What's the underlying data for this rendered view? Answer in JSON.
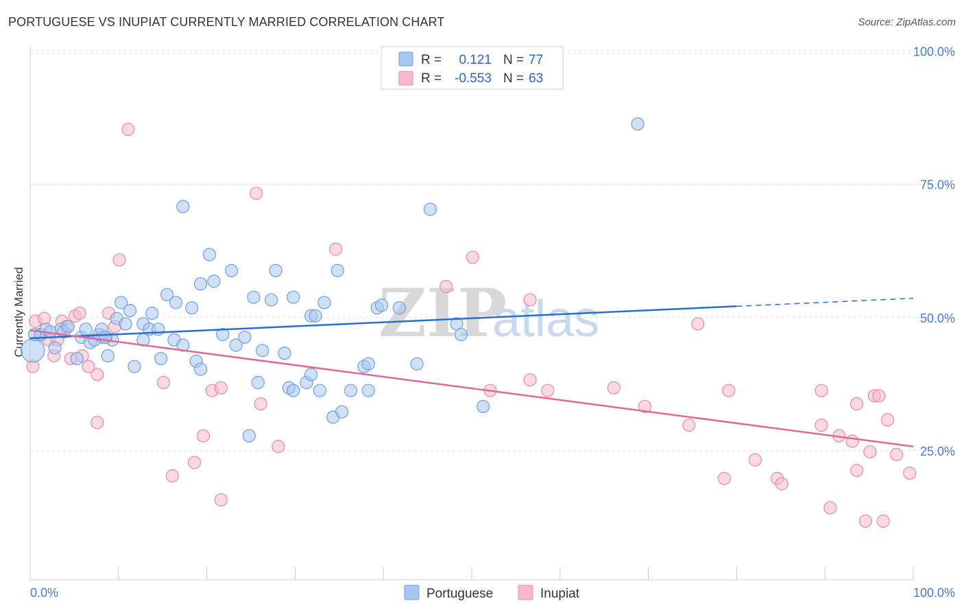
{
  "title": "PORTUGUESE VS INUPIAT CURRENTLY MARRIED CORRELATION CHART",
  "source": "Source: ZipAtlas.com",
  "watermark": {
    "zip": "ZIP",
    "atlas": "atlas"
  },
  "colors": {
    "blue_fill": "#a9c6f0",
    "blue_stroke": "#6f9fdc",
    "blue_line": "#2a6dd0",
    "pink_fill": "#f6b9cb",
    "pink_stroke": "#e98aa6",
    "pink_line": "#e06893",
    "tick": "#4a7cc9",
    "grid": "#dddddd"
  },
  "legend": {
    "rows": [
      {
        "r_label": "R =",
        "r_value": "0.121",
        "n_label": "N =",
        "n_value": "77"
      },
      {
        "r_label": "R =",
        "r_value": "-0.553",
        "n_label": "N =",
        "n_value": "63"
      }
    ]
  },
  "chart_data": {
    "type": "scatter",
    "title": "PORTUGUESE VS INUPIAT CURRENTLY MARRIED CORRELATION CHART",
    "xlabel": "",
    "ylabel": "Currently Married",
    "xlim": [
      0,
      100
    ],
    "ylim": [
      3,
      103
    ],
    "x_tick_labels": [
      "0.0%",
      "100.0%"
    ],
    "y_ticks": [
      25,
      50,
      75,
      100
    ],
    "y_tick_labels": [
      "25.0%",
      "50.0%",
      "75.0%",
      "100.0%"
    ],
    "series": [
      {
        "name": "Portuguese",
        "r": 0.121,
        "n": 77,
        "trend": {
          "x0": 0,
          "y0": 48.3,
          "x1": 80,
          "y1": 54.3,
          "dashed_to_x": 100,
          "dashed_to_y": 55.8
        },
        "points": [
          [
            0.3,
            46
          ],
          [
            1.2,
            49
          ],
          [
            1.8,
            50
          ],
          [
            2.3,
            49.5
          ],
          [
            2.8,
            46.5
          ],
          [
            3.5,
            50
          ],
          [
            3.8,
            49.5
          ],
          [
            4.3,
            50.5
          ],
          [
            5.3,
            44.5
          ],
          [
            5.8,
            48.5
          ],
          [
            6.3,
            50
          ],
          [
            6.8,
            47.5
          ],
          [
            7.3,
            48
          ],
          [
            7.8,
            49
          ],
          [
            8.1,
            50
          ],
          [
            8.8,
            45
          ],
          [
            9.3,
            48
          ],
          [
            9.8,
            52
          ],
          [
            10.3,
            55
          ],
          [
            10.8,
            51
          ],
          [
            11.3,
            53.5
          ],
          [
            11.8,
            43
          ],
          [
            12.8,
            51
          ],
          [
            12.8,
            48
          ],
          [
            13.5,
            50
          ],
          [
            13.8,
            53
          ],
          [
            14.5,
            50
          ],
          [
            14.8,
            44.5
          ],
          [
            15.5,
            56.5
          ],
          [
            16.3,
            48
          ],
          [
            16.5,
            55
          ],
          [
            17.3,
            47
          ],
          [
            17.3,
            73
          ],
          [
            18.3,
            54
          ],
          [
            18.8,
            44
          ],
          [
            19.3,
            42.5
          ],
          [
            19.3,
            58.5
          ],
          [
            20.3,
            64
          ],
          [
            20.8,
            59
          ],
          [
            21.8,
            49
          ],
          [
            22.8,
            61
          ],
          [
            23.3,
            47
          ],
          [
            24.3,
            48.5
          ],
          [
            25.3,
            56
          ],
          [
            25.8,
            40
          ],
          [
            24.8,
            30
          ],
          [
            26.3,
            46
          ],
          [
            27.3,
            55.5
          ],
          [
            27.8,
            61
          ],
          [
            28.8,
            45.5
          ],
          [
            29.3,
            39
          ],
          [
            29.8,
            38.5
          ],
          [
            29.8,
            56
          ],
          [
            31.3,
            40
          ],
          [
            31.8,
            52.5
          ],
          [
            31.8,
            41.5
          ],
          [
            32.3,
            52.5
          ],
          [
            32.8,
            38.5
          ],
          [
            33.3,
            55
          ],
          [
            34.3,
            33.5
          ],
          [
            34.8,
            61
          ],
          [
            35.3,
            34.5
          ],
          [
            36.3,
            38.5
          ],
          [
            37.8,
            43
          ],
          [
            38.3,
            43.5
          ],
          [
            38.3,
            38.5
          ],
          [
            39.3,
            54
          ],
          [
            39.8,
            54.5
          ],
          [
            41.8,
            54
          ],
          [
            43.8,
            43.5
          ],
          [
            45.3,
            72.5
          ],
          [
            48.3,
            51
          ],
          [
            48.8,
            49
          ],
          [
            51.3,
            35.5
          ],
          [
            68.8,
            88.5
          ],
          [
            0.5,
            49
          ],
          [
            8.5,
            48.5
          ]
        ]
      },
      {
        "name": "Inupiat",
        "r": -0.553,
        "n": 63,
        "trend": {
          "x0": 0,
          "y0": 49.8,
          "x1": 100,
          "y1": 28.0
        },
        "points": [
          [
            0.3,
            43
          ],
          [
            0.6,
            51.5
          ],
          [
            1.1,
            49
          ],
          [
            1.6,
            52
          ],
          [
            2.1,
            48
          ],
          [
            2.7,
            45
          ],
          [
            3.1,
            48
          ],
          [
            3.6,
            51.5
          ],
          [
            4.1,
            50.5
          ],
          [
            4.6,
            44.5
          ],
          [
            5.1,
            52.5
          ],
          [
            5.6,
            53
          ],
          [
            5.9,
            45
          ],
          [
            6.6,
            43
          ],
          [
            7.6,
            41.5
          ],
          [
            7.6,
            32.5
          ],
          [
            8.1,
            48.5
          ],
          [
            8.6,
            48.5
          ],
          [
            8.9,
            53
          ],
          [
            9.6,
            50.5
          ],
          [
            10.1,
            63
          ],
          [
            11.1,
            87.5
          ],
          [
            15.1,
            40
          ],
          [
            16.1,
            22.5
          ],
          [
            18.6,
            25
          ],
          [
            19.6,
            30
          ],
          [
            20.6,
            38.5
          ],
          [
            21.6,
            39
          ],
          [
            21.6,
            18
          ],
          [
            25.6,
            75.5
          ],
          [
            26.1,
            36
          ],
          [
            28.1,
            28
          ],
          [
            34.6,
            65
          ],
          [
            47.1,
            58
          ],
          [
            50.1,
            63.5
          ],
          [
            52.1,
            38.5
          ],
          [
            56.6,
            55.5
          ],
          [
            56.6,
            40.5
          ],
          [
            58.6,
            38.5
          ],
          [
            66.1,
            39
          ],
          [
            69.6,
            35.5
          ],
          [
            74.6,
            32
          ],
          [
            75.6,
            51
          ],
          [
            78.6,
            22
          ],
          [
            79.1,
            38.5
          ],
          [
            82.1,
            25.5
          ],
          [
            84.6,
            22
          ],
          [
            85.1,
            21
          ],
          [
            89.6,
            38.5
          ],
          [
            89.6,
            32
          ],
          [
            90.6,
            16.5
          ],
          [
            91.6,
            30
          ],
          [
            93.1,
            29
          ],
          [
            93.6,
            23.5
          ],
          [
            93.6,
            36
          ],
          [
            94.6,
            14
          ],
          [
            95.1,
            27
          ],
          [
            95.6,
            37.5
          ],
          [
            96.1,
            37.5
          ],
          [
            96.6,
            14
          ],
          [
            97.1,
            33
          ],
          [
            98.1,
            26.5
          ],
          [
            99.6,
            23
          ]
        ]
      }
    ]
  },
  "bottom_legend": [
    {
      "label": "Portuguese"
    },
    {
      "label": "Inupiat"
    }
  ]
}
